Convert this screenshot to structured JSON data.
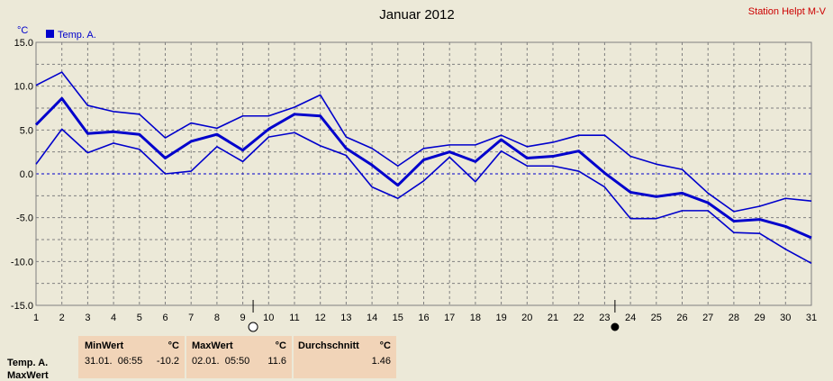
{
  "chart_data": {
    "type": "line",
    "title": "Januar 2012",
    "station": "Station Helpt M-V",
    "yunit": "°C",
    "ylim": [
      -15,
      15
    ],
    "yticks": [
      "15.0",
      "10.0",
      "5.0",
      "0.0",
      "-5.0",
      "-10.0",
      "-15.0"
    ],
    "x": [
      1,
      2,
      3,
      4,
      5,
      6,
      7,
      8,
      9,
      10,
      11,
      12,
      13,
      14,
      15,
      16,
      17,
      18,
      19,
      20,
      21,
      22,
      23,
      24,
      25,
      26,
      27,
      28,
      29,
      30,
      31
    ],
    "grid": true,
    "legend": {
      "placement": "top-left",
      "label": "Temp. A.",
      "color": "#0000cc"
    },
    "moon_markers": [
      {
        "day": 9.4,
        "phase": "full"
      },
      {
        "day": 23.4,
        "phase": "new"
      }
    ],
    "series": [
      {
        "role": "max",
        "values": [
          10.1,
          11.6,
          7.8,
          7.1,
          6.8,
          4.1,
          5.8,
          5.2,
          6.6,
          6.6,
          7.6,
          9.0,
          4.2,
          2.9,
          0.9,
          2.9,
          3.3,
          3.3,
          4.4,
          3.1,
          3.6,
          4.4,
          4.4,
          2.0,
          1.1,
          0.5,
          -2.2,
          -4.3,
          -3.7,
          -2.8,
          -3.1
        ]
      },
      {
        "role": "avg",
        "values": [
          5.6,
          8.6,
          4.6,
          4.8,
          4.5,
          1.8,
          3.7,
          4.5,
          2.7,
          5.1,
          6.8,
          6.6,
          2.9,
          1.0,
          -1.3,
          1.6,
          2.5,
          1.4,
          3.9,
          1.8,
          2.0,
          2.6,
          0.1,
          -2.1,
          -2.6,
          -2.2,
          -3.3,
          -5.4,
          -5.2,
          -6.0,
          -7.3
        ]
      },
      {
        "role": "min",
        "values": [
          1.1,
          5.1,
          2.4,
          3.5,
          2.8,
          0.0,
          0.3,
          3.1,
          1.4,
          4.2,
          4.7,
          3.2,
          2.1,
          -1.5,
          -2.8,
          -0.8,
          1.9,
          -0.9,
          2.6,
          0.9,
          0.9,
          0.3,
          -1.5,
          -5.1,
          -5.1,
          -4.2,
          -4.2,
          -6.7,
          -6.8,
          -8.6,
          -10.2
        ]
      }
    ]
  },
  "stats": {
    "row_label": "Temp. A.",
    "row_label2": "MaxWert",
    "min": {
      "header": "MinWert",
      "unit": "°C",
      "datetime": "31.01.  06:55",
      "value": "-10.2"
    },
    "max": {
      "header": "MaxWert",
      "unit": "°C",
      "datetime": "02.01.  05:50",
      "value": "11.6"
    },
    "avg": {
      "header": "Durchschnitt",
      "unit": "°C",
      "value": "1.46"
    }
  }
}
